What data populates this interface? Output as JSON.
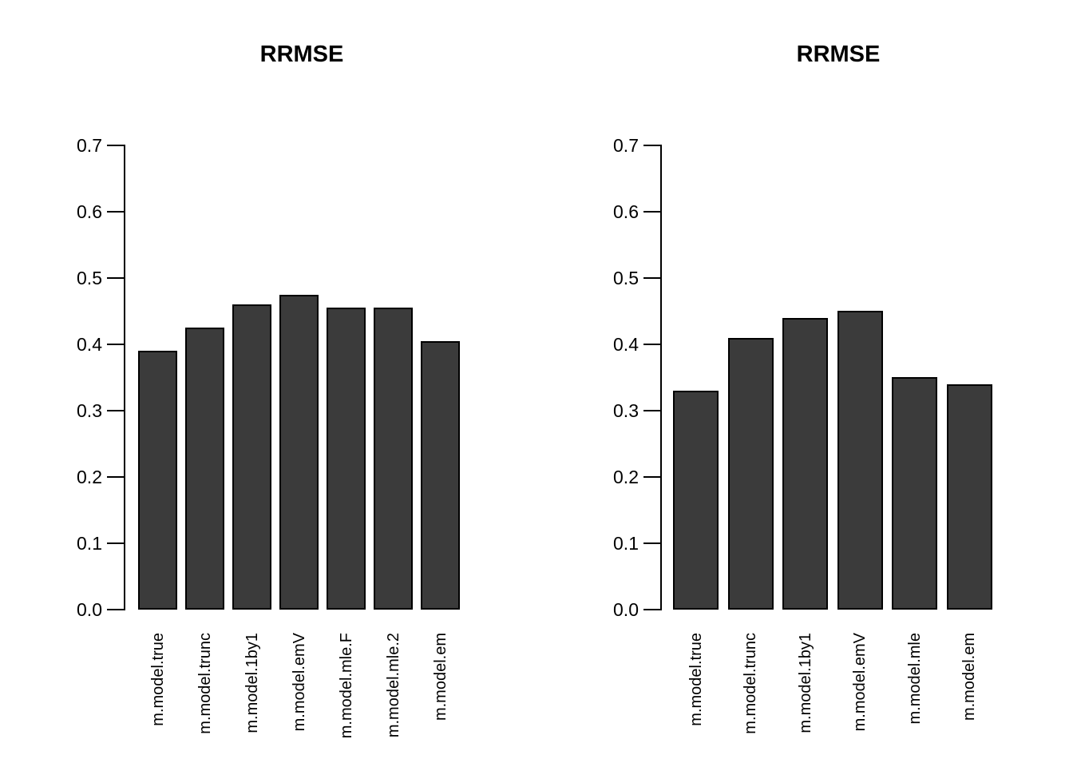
{
  "chart_data": [
    {
      "type": "bar",
      "title": "RRMSE",
      "categories": [
        "m.model.true",
        "m.model.trunc",
        "m.model.1by1",
        "m.model.emV",
        "m.model.mle.F",
        "m.model.mle.2",
        "m.model.em"
      ],
      "values": [
        0.39,
        0.425,
        0.46,
        0.475,
        0.455,
        0.455,
        0.405
      ],
      "xlabel": "",
      "ylabel": "",
      "ylim": [
        0.0,
        0.7
      ],
      "yticks": [
        0.0,
        0.1,
        0.2,
        0.3,
        0.4,
        0.5,
        0.6,
        0.7
      ],
      "grid": false,
      "legend": false,
      "bar_color": "#3b3b3b",
      "bar_border_color": "#000000",
      "background_color": "#ffffff",
      "x_label_rotation": "vertical"
    },
    {
      "type": "bar",
      "title": "RRMSE",
      "categories": [
        "m.model.true",
        "m.model.trunc",
        "m.model.1by1",
        "m.model.emV",
        "m.model.mle",
        "m.model.em"
      ],
      "values": [
        0.33,
        0.41,
        0.44,
        0.45,
        0.35,
        0.34
      ],
      "xlabel": "",
      "ylabel": "",
      "ylim": [
        0.0,
        0.7
      ],
      "yticks": [
        0.0,
        0.1,
        0.2,
        0.3,
        0.4,
        0.5,
        0.6,
        0.7
      ],
      "grid": false,
      "legend": false,
      "bar_color": "#3b3b3b",
      "bar_border_color": "#000000",
      "background_color": "#ffffff",
      "x_label_rotation": "vertical"
    }
  ]
}
